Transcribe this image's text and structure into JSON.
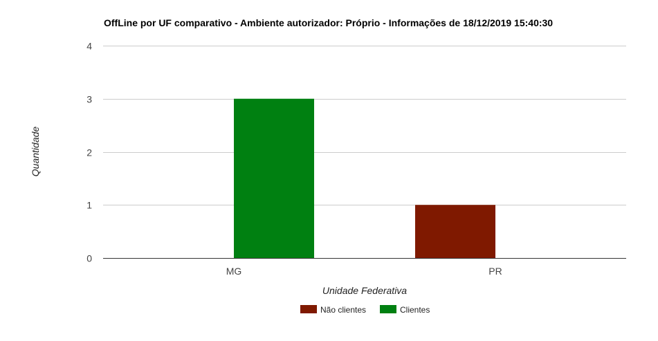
{
  "chart_data": {
    "type": "bar",
    "title": "OffLine por UF comparativo - Ambiente autorizador: Próprio - Informações de 18/12/2019 15:40:30",
    "xlabel": "Unidade Federativa",
    "ylabel": "Quantidade",
    "categories": [
      "MG",
      "PR"
    ],
    "series": [
      {
        "name": "Não clientes",
        "values": [
          0,
          1
        ],
        "color": "#7f1900"
      },
      {
        "name": "Clientes",
        "values": [
          3,
          0
        ],
        "color": "#008011"
      }
    ],
    "ylim": [
      0,
      4
    ],
    "yticks": [
      0,
      1,
      2,
      3,
      4
    ],
    "grid": true,
    "legend": "bottom"
  }
}
